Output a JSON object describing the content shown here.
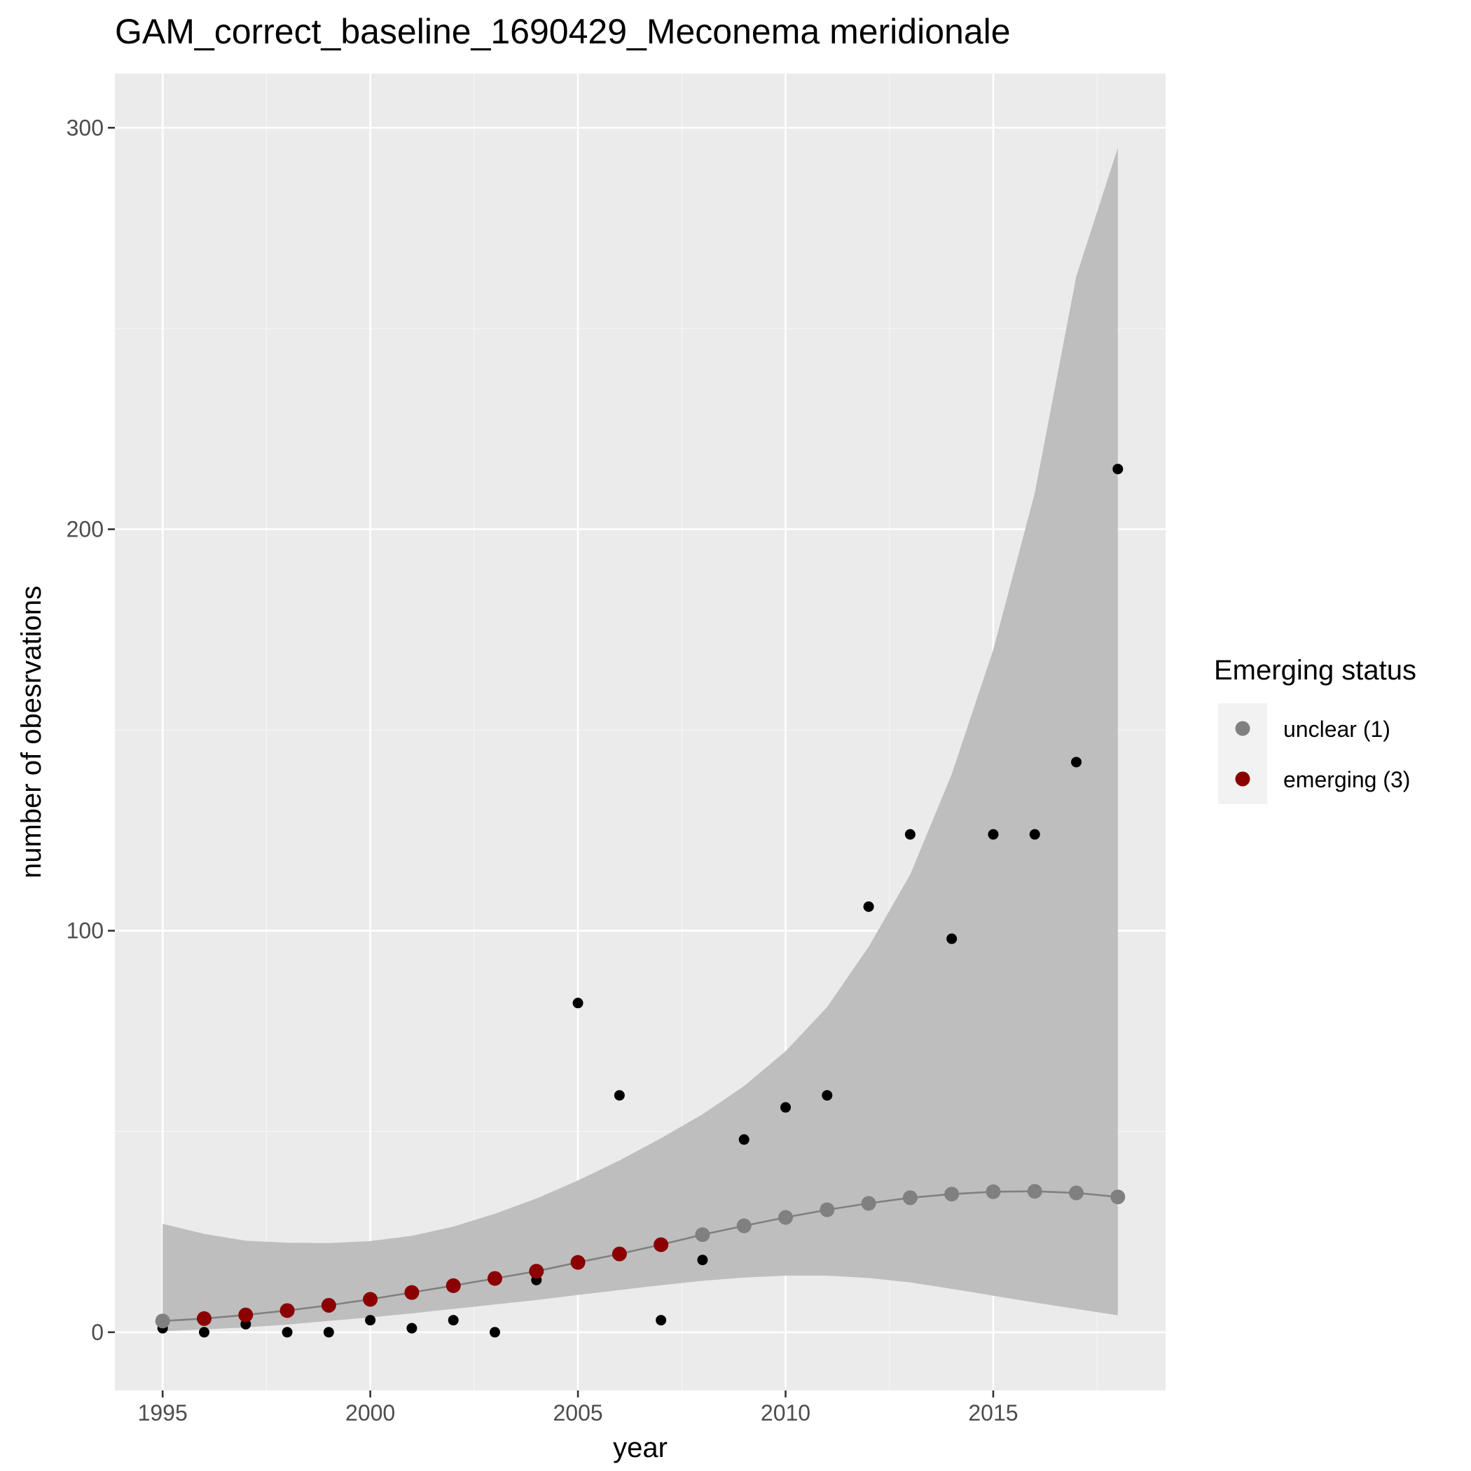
{
  "chart_data": {
    "type": "scatter",
    "title": "GAM_correct_baseline_1690429_Meconema meridionale",
    "xlabel": "year",
    "ylabel": "number of obesrvations",
    "xlim": [
      1993.85,
      2019.15
    ],
    "ylim": [
      -14.5,
      313.5
    ],
    "x_ticks": [
      1995,
      2000,
      2005,
      2010,
      2015
    ],
    "x_tick_labels": [
      "1995",
      "2000",
      "2005",
      "2010",
      "2015"
    ],
    "y_ticks": [
      0,
      100,
      200,
      300
    ],
    "y_tick_labels": [
      "0",
      "100",
      "200",
      "300"
    ],
    "grid": true,
    "legend": {
      "title": "Emerging status",
      "position": "right",
      "entries": [
        {
          "label": "unclear (1)",
          "color": "#808080"
        },
        {
          "label": "emerging (3)",
          "color": "#8b0000"
        }
      ]
    },
    "colors": {
      "panel": "#ebebeb",
      "grid_major": "#ffffff",
      "grid_minor": "#f5f5f5",
      "ribbon": "#bebebe",
      "fit_line": "#808080",
      "observed": "#000000",
      "unclear": "#808080",
      "emerging": "#8b0000",
      "axis_tick": "#333333"
    },
    "observed": {
      "x": [
        1995,
        1996,
        1997,
        1998,
        1999,
        2000,
        2001,
        2002,
        2003,
        2004,
        2005,
        2006,
        2007,
        2008,
        2009,
        2010,
        2011,
        2012,
        2013,
        2014,
        2015,
        2016,
        2017,
        2018
      ],
      "y": [
        1,
        0,
        2,
        0,
        0,
        3,
        1,
        3,
        0,
        13,
        82,
        59,
        3,
        18,
        48,
        56,
        59,
        106,
        124,
        98,
        124,
        124,
        142,
        215
      ]
    },
    "fit": {
      "x": [
        1995,
        1996,
        1997,
        1998,
        1999,
        2000,
        2001,
        2002,
        2003,
        2004,
        2005,
        2006,
        2007,
        2008,
        2009,
        2010,
        2011,
        2012,
        2013,
        2014,
        2015,
        2016,
        2017,
        2018
      ],
      "y": [
        2.8,
        3.4,
        4.3,
        5.4,
        6.7,
        8.2,
        9.9,
        11.6,
        13.4,
        15.2,
        17.4,
        19.5,
        21.8,
        24.3,
        26.5,
        28.6,
        30.5,
        32.1,
        33.5,
        34.4,
        35.0,
        35.1,
        34.7,
        33.7
      ],
      "status": [
        "unclear",
        "emerging",
        "emerging",
        "emerging",
        "emerging",
        "emerging",
        "emerging",
        "emerging",
        "emerging",
        "emerging",
        "emerging",
        "emerging",
        "emerging",
        "unclear",
        "unclear",
        "unclear",
        "unclear",
        "unclear",
        "unclear",
        "unclear",
        "unclear",
        "unclear",
        "unclear",
        "unclear"
      ]
    },
    "confidence_band": {
      "x": [
        1995,
        1996,
        1997,
        1998,
        1999,
        2000,
        2001,
        2002,
        2003,
        2004,
        2005,
        2006,
        2007,
        2008,
        2009,
        2010,
        2011,
        2012,
        2013,
        2014,
        2015,
        2016,
        2017,
        2018
      ],
      "lower": [
        0.3,
        0.7,
        1.2,
        1.9,
        2.8,
        3.7,
        4.7,
        5.8,
        6.9,
        8.0,
        9.3,
        10.5,
        11.7,
        12.8,
        13.6,
        14.1,
        14.1,
        13.5,
        12.4,
        10.8,
        9.1,
        7.4,
        5.8,
        4.2
      ],
      "upper": [
        27.0,
        24.5,
        22.8,
        22.3,
        22.2,
        22.7,
        24.0,
        26.3,
        29.5,
        33.3,
        37.8,
        42.8,
        48.3,
        54.3,
        61.3,
        70.0,
        81.0,
        96.0,
        114.0,
        139.0,
        170.0,
        209.0,
        263.0,
        295.0
      ]
    }
  }
}
